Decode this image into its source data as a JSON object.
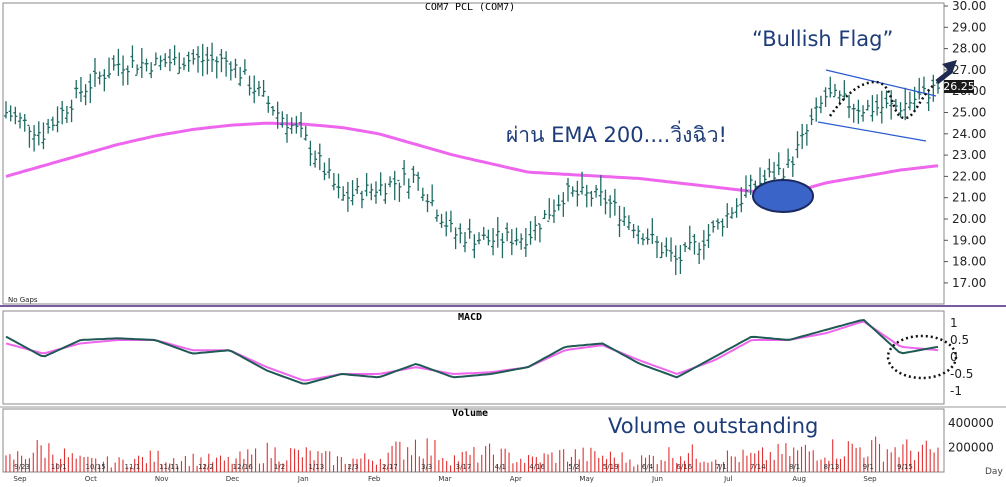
{
  "title": "COM7 PCL (COM7)",
  "price_panel": {
    "no_gaps_label": "No Gaps",
    "y_ticks": [
      "30.00",
      "29.00",
      "28.00",
      "27.00",
      "26.00",
      "25.00",
      "24.00",
      "23.00",
      "22.00",
      "21.00",
      "20.00",
      "19.00",
      "18.00",
      "17.00"
    ],
    "last_price_label": "26.25",
    "annotation_ema": "ผ่าน EMA 200....วิ่งฉิว!",
    "annotation_flag": "“Bullish Flag”"
  },
  "macd_panel": {
    "title": "MACD",
    "y_ticks": [
      "1",
      "0.5",
      "0",
      "-0.5",
      "-1"
    ]
  },
  "volume_panel": {
    "title": "Volume",
    "y_ticks": [
      "400000",
      "200000"
    ],
    "annotation": "Volume outstanding",
    "day_label": "Day"
  },
  "x_axis": {
    "week_labels": [
      "9/23",
      "10/1",
      "10/15",
      "11/1",
      "11/11",
      "12/2",
      "12/16",
      "1/2",
      "1/13",
      "2/3",
      "2/17",
      "3/3",
      "3/17",
      "4/1",
      "4/16",
      "5/2",
      "5/19",
      "6/4",
      "6/16",
      "7/1",
      "7/14",
      "8/1",
      "8/13",
      "9/1",
      "9/15"
    ],
    "month_labels": [
      "Sep",
      "Oct",
      "Nov",
      "Dec",
      "Jan",
      "Feb",
      "Mar",
      "Apr",
      "May",
      "Jun",
      "Jul",
      "Aug",
      "Sep"
    ]
  },
  "colors": {
    "price_bars": "#1f6b64",
    "ema": "#ee66ee",
    "macd": "#1f5a55",
    "signal": "#ee66ee",
    "volume": "#e03030",
    "annotation_text": "#1e3c78",
    "ellipse_fill": "#3a64c8",
    "flag_lines": "#2a5ad0"
  },
  "chart_data": [
    {
      "type": "line",
      "title": "COM7 PCL (COM7)",
      "description_series": [
        "COM7 price (high-low bars)",
        "EMA 200"
      ],
      "x": [
        "9/23",
        "10/1",
        "10/15",
        "11/1",
        "11/11",
        "12/2",
        "12/16",
        "1/2",
        "1/13",
        "2/3",
        "2/17",
        "3/3",
        "3/17",
        "4/1",
        "4/16",
        "5/2",
        "5/19",
        "6/4",
        "6/16",
        "7/1",
        "7/14",
        "8/1",
        "8/13",
        "9/1",
        "9/15",
        "9/23"
      ],
      "series": [
        {
          "values": [
            25.0,
            24.0,
            26.0,
            27.3,
            27.3,
            27.5,
            27.4,
            25.5,
            23.8,
            21.0,
            21.5,
            22.0,
            19.3,
            19.0,
            19.2,
            21.2,
            21.0,
            19.5,
            18.0,
            19.5,
            21.5,
            22.5,
            25.8,
            25.2,
            25.3,
            26.2
          ]
        },
        {
          "values": [
            22.0,
            22.5,
            23.0,
            23.5,
            23.9,
            24.2,
            24.4,
            24.5,
            24.45,
            24.3,
            24.0,
            23.5,
            23.0,
            22.6,
            22.2,
            22.1,
            22.0,
            21.9,
            21.7,
            21.5,
            21.3,
            21.2,
            21.7,
            22.0,
            22.3,
            22.5
          ]
        }
      ],
      "ylim": [
        16.5,
        30.0
      ]
    },
    {
      "type": "line",
      "title": "MACD",
      "x": [
        "9/23",
        "10/1",
        "10/15",
        "11/1",
        "11/11",
        "12/2",
        "12/16",
        "1/2",
        "1/13",
        "2/3",
        "2/17",
        "3/3",
        "3/17",
        "4/1",
        "4/16",
        "5/2",
        "5/19",
        "6/4",
        "6/16",
        "7/1",
        "7/14",
        "8/1",
        "8/13",
        "9/1",
        "9/15",
        "9/23"
      ],
      "series": [
        {
          "values": [
            0.6,
            0.0,
            0.5,
            0.55,
            0.5,
            0.1,
            0.2,
            -0.4,
            -0.8,
            -0.5,
            -0.6,
            -0.2,
            -0.6,
            -0.5,
            -0.3,
            0.3,
            0.4,
            -0.2,
            -0.6,
            0.0,
            0.6,
            0.5,
            0.8,
            1.1,
            0.1,
            0.3
          ]
        },
        {
          "values": [
            0.4,
            0.1,
            0.4,
            0.5,
            0.5,
            0.2,
            0.2,
            -0.3,
            -0.7,
            -0.5,
            -0.5,
            -0.3,
            -0.5,
            -0.45,
            -0.3,
            0.2,
            0.35,
            -0.1,
            -0.5,
            -0.1,
            0.5,
            0.5,
            0.7,
            1.05,
            0.3,
            0.2
          ]
        }
      ],
      "ylim": [
        -1.2,
        1.3
      ]
    },
    {
      "type": "bar",
      "title": "Volume",
      "x": [
        "9/23",
        "10/1",
        "10/15",
        "11/1",
        "11/11",
        "12/2",
        "12/16",
        "1/2",
        "1/13",
        "2/3",
        "2/17",
        "3/3",
        "3/17",
        "4/1",
        "4/16",
        "5/2",
        "5/19",
        "6/4",
        "6/16",
        "7/1",
        "7/14",
        "8/1",
        "8/13",
        "9/1",
        "9/15",
        "9/23"
      ],
      "values": [
        120000,
        250000,
        110000,
        100000,
        150000,
        130000,
        110000,
        200000,
        180000,
        120000,
        140000,
        300000,
        140000,
        190000,
        120000,
        180000,
        160000,
        120000,
        200000,
        160000,
        150000,
        200000,
        230000,
        250000,
        230000,
        200000
      ],
      "ylim": [
        0,
        500000
      ]
    }
  ]
}
